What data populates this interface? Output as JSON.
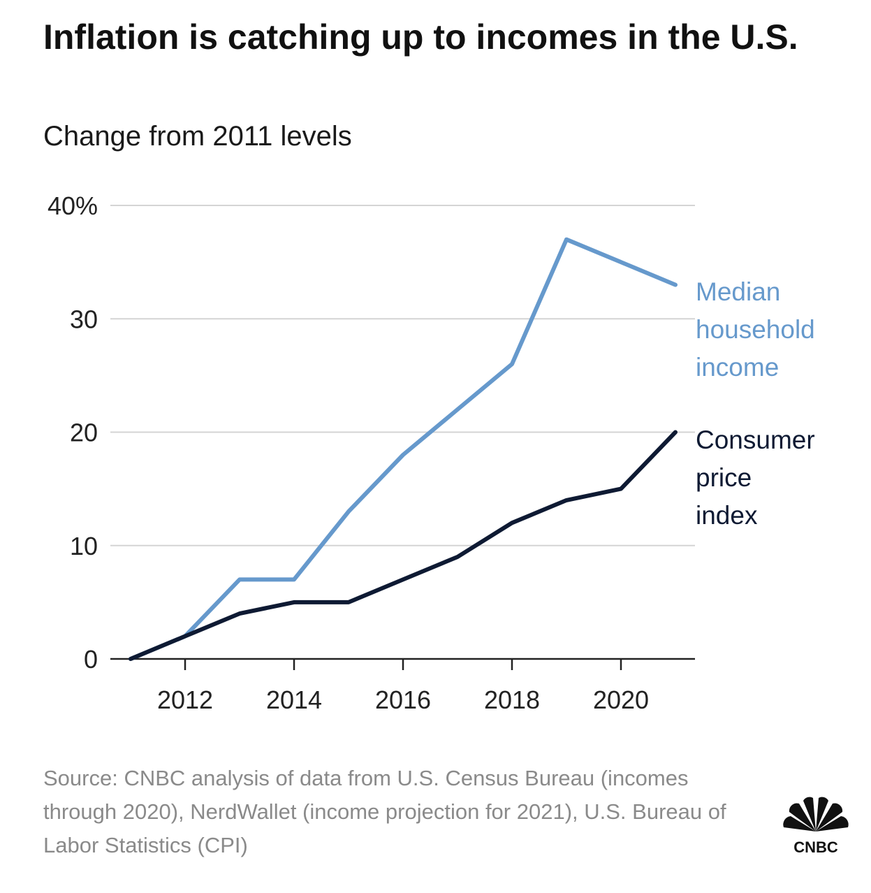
{
  "title": "Inflation is catching up to incomes in the U.S.",
  "subtitle": "Change from 2011 levels",
  "source": "Source: CNBC analysis of data from U.S. Census Bureau (incomes through 2020), NerdWallet (income projection for 2021), U.S. Bureau of Labor Statistics (CPI)",
  "logo_text": "CNBC",
  "chart_data": {
    "type": "line",
    "x": [
      2011,
      2012,
      2013,
      2014,
      2015,
      2016,
      2017,
      2018,
      2019,
      2020,
      2021
    ],
    "xlim": [
      2011,
      2021
    ],
    "ylim": [
      0,
      40
    ],
    "x_ticks": [
      2012,
      2014,
      2016,
      2018,
      2020
    ],
    "y_ticks": [
      0,
      10,
      20,
      30,
      40
    ],
    "y_tick_labels": [
      "0",
      "10",
      "20",
      "30",
      "40%"
    ],
    "grid": true,
    "legend": "direct labels at line ends",
    "series": [
      {
        "name": "Median household income",
        "label_lines": [
          "Median",
          "household",
          "income"
        ],
        "color": "#6699cc",
        "values": [
          0,
          2,
          7,
          7,
          13,
          18,
          22,
          26,
          37,
          35,
          33
        ]
      },
      {
        "name": "Consumer price index",
        "label_lines": [
          "Consumer",
          "price",
          "index"
        ],
        "color": "#0e1a33",
        "values": [
          0,
          2,
          4,
          5,
          5,
          7,
          9,
          12,
          14,
          15,
          20
        ]
      }
    ]
  }
}
